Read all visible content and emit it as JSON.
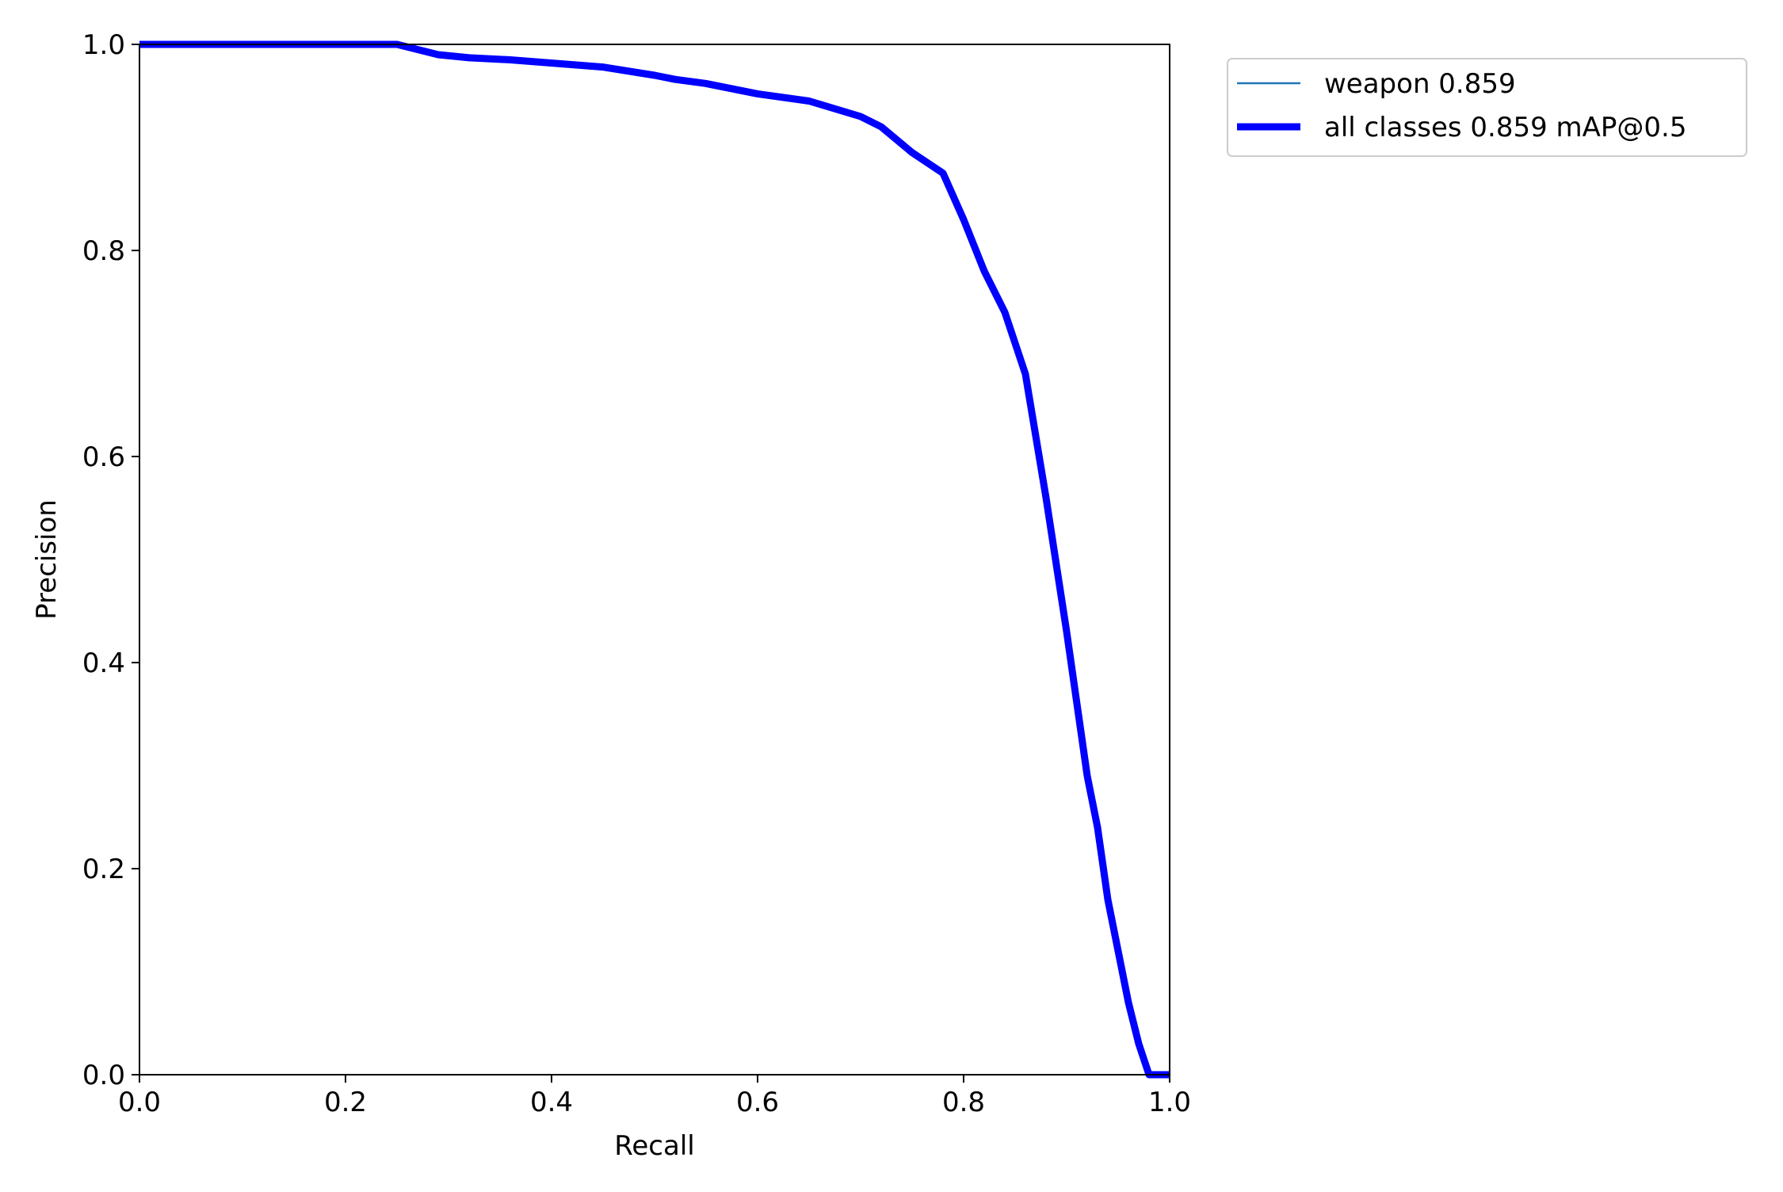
{
  "chart_data": {
    "type": "line",
    "xlabel": "Recall",
    "ylabel": "Precision",
    "xlim": [
      0,
      1
    ],
    "ylim": [
      0,
      1
    ],
    "xticks": [
      "0.0",
      "0.2",
      "0.4",
      "0.6",
      "0.8",
      "1.0"
    ],
    "yticks": [
      "0.0",
      "0.2",
      "0.4",
      "0.6",
      "0.8",
      "1.0"
    ],
    "grid": false,
    "legend_position": "outside-top-right",
    "series": [
      {
        "name": "weapon 0.859",
        "color": "#1f77b4",
        "style": "thin",
        "x": [
          0.0,
          0.25,
          0.29,
          0.32,
          0.36,
          0.45,
          0.5,
          0.52,
          0.55,
          0.6,
          0.65,
          0.7,
          0.72,
          0.75,
          0.78,
          0.8,
          0.82,
          0.84,
          0.86,
          0.88,
          0.9,
          0.91,
          0.92,
          0.93,
          0.94,
          0.95,
          0.96,
          0.97,
          0.98,
          1.0
        ],
        "y": [
          1.0,
          1.0,
          0.99,
          0.987,
          0.985,
          0.978,
          0.97,
          0.966,
          0.962,
          0.952,
          0.945,
          0.93,
          0.92,
          0.895,
          0.875,
          0.83,
          0.78,
          0.74,
          0.68,
          0.56,
          0.43,
          0.36,
          0.29,
          0.24,
          0.17,
          0.12,
          0.07,
          0.03,
          0.0,
          0.0
        ]
      },
      {
        "name": "all classes 0.859 mAP@0.5",
        "color": "#0000ff",
        "style": "thick",
        "x": [
          0.0,
          0.25,
          0.29,
          0.32,
          0.36,
          0.45,
          0.5,
          0.52,
          0.55,
          0.6,
          0.65,
          0.7,
          0.72,
          0.75,
          0.78,
          0.8,
          0.82,
          0.84,
          0.86,
          0.88,
          0.9,
          0.91,
          0.92,
          0.93,
          0.94,
          0.95,
          0.96,
          0.97,
          0.98,
          1.0
        ],
        "y": [
          1.0,
          1.0,
          0.99,
          0.987,
          0.985,
          0.978,
          0.97,
          0.966,
          0.962,
          0.952,
          0.945,
          0.93,
          0.92,
          0.895,
          0.875,
          0.83,
          0.78,
          0.74,
          0.68,
          0.56,
          0.43,
          0.36,
          0.29,
          0.24,
          0.17,
          0.12,
          0.07,
          0.03,
          0.0,
          0.0
        ]
      }
    ]
  }
}
